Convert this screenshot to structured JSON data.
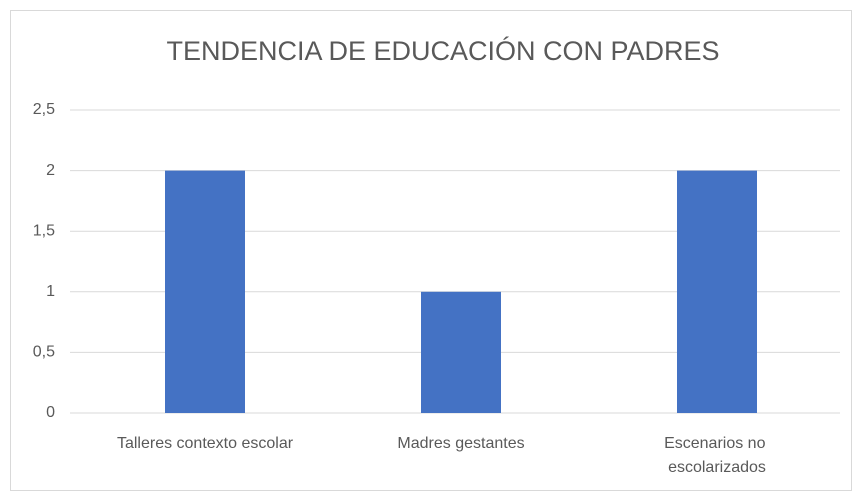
{
  "chart_data": {
    "type": "bar",
    "title": "TENDENCIA DE EDUCACIÓN CON PADRES",
    "categories": [
      "Talleres contexto escolar",
      "Madres gestantes",
      "Escenarios no escolarizados"
    ],
    "values": [
      2,
      1,
      2
    ],
    "color": "#4472c4",
    "ylim": [
      0,
      2.5
    ],
    "yticks": [
      0,
      {
        "value": 0.5,
        "label": "0,5"
      },
      1,
      {
        "value": 1.5,
        "label": "1,5"
      },
      2,
      {
        "value": 2.5,
        "label": "2,5"
      }
    ],
    "grid": true
  }
}
